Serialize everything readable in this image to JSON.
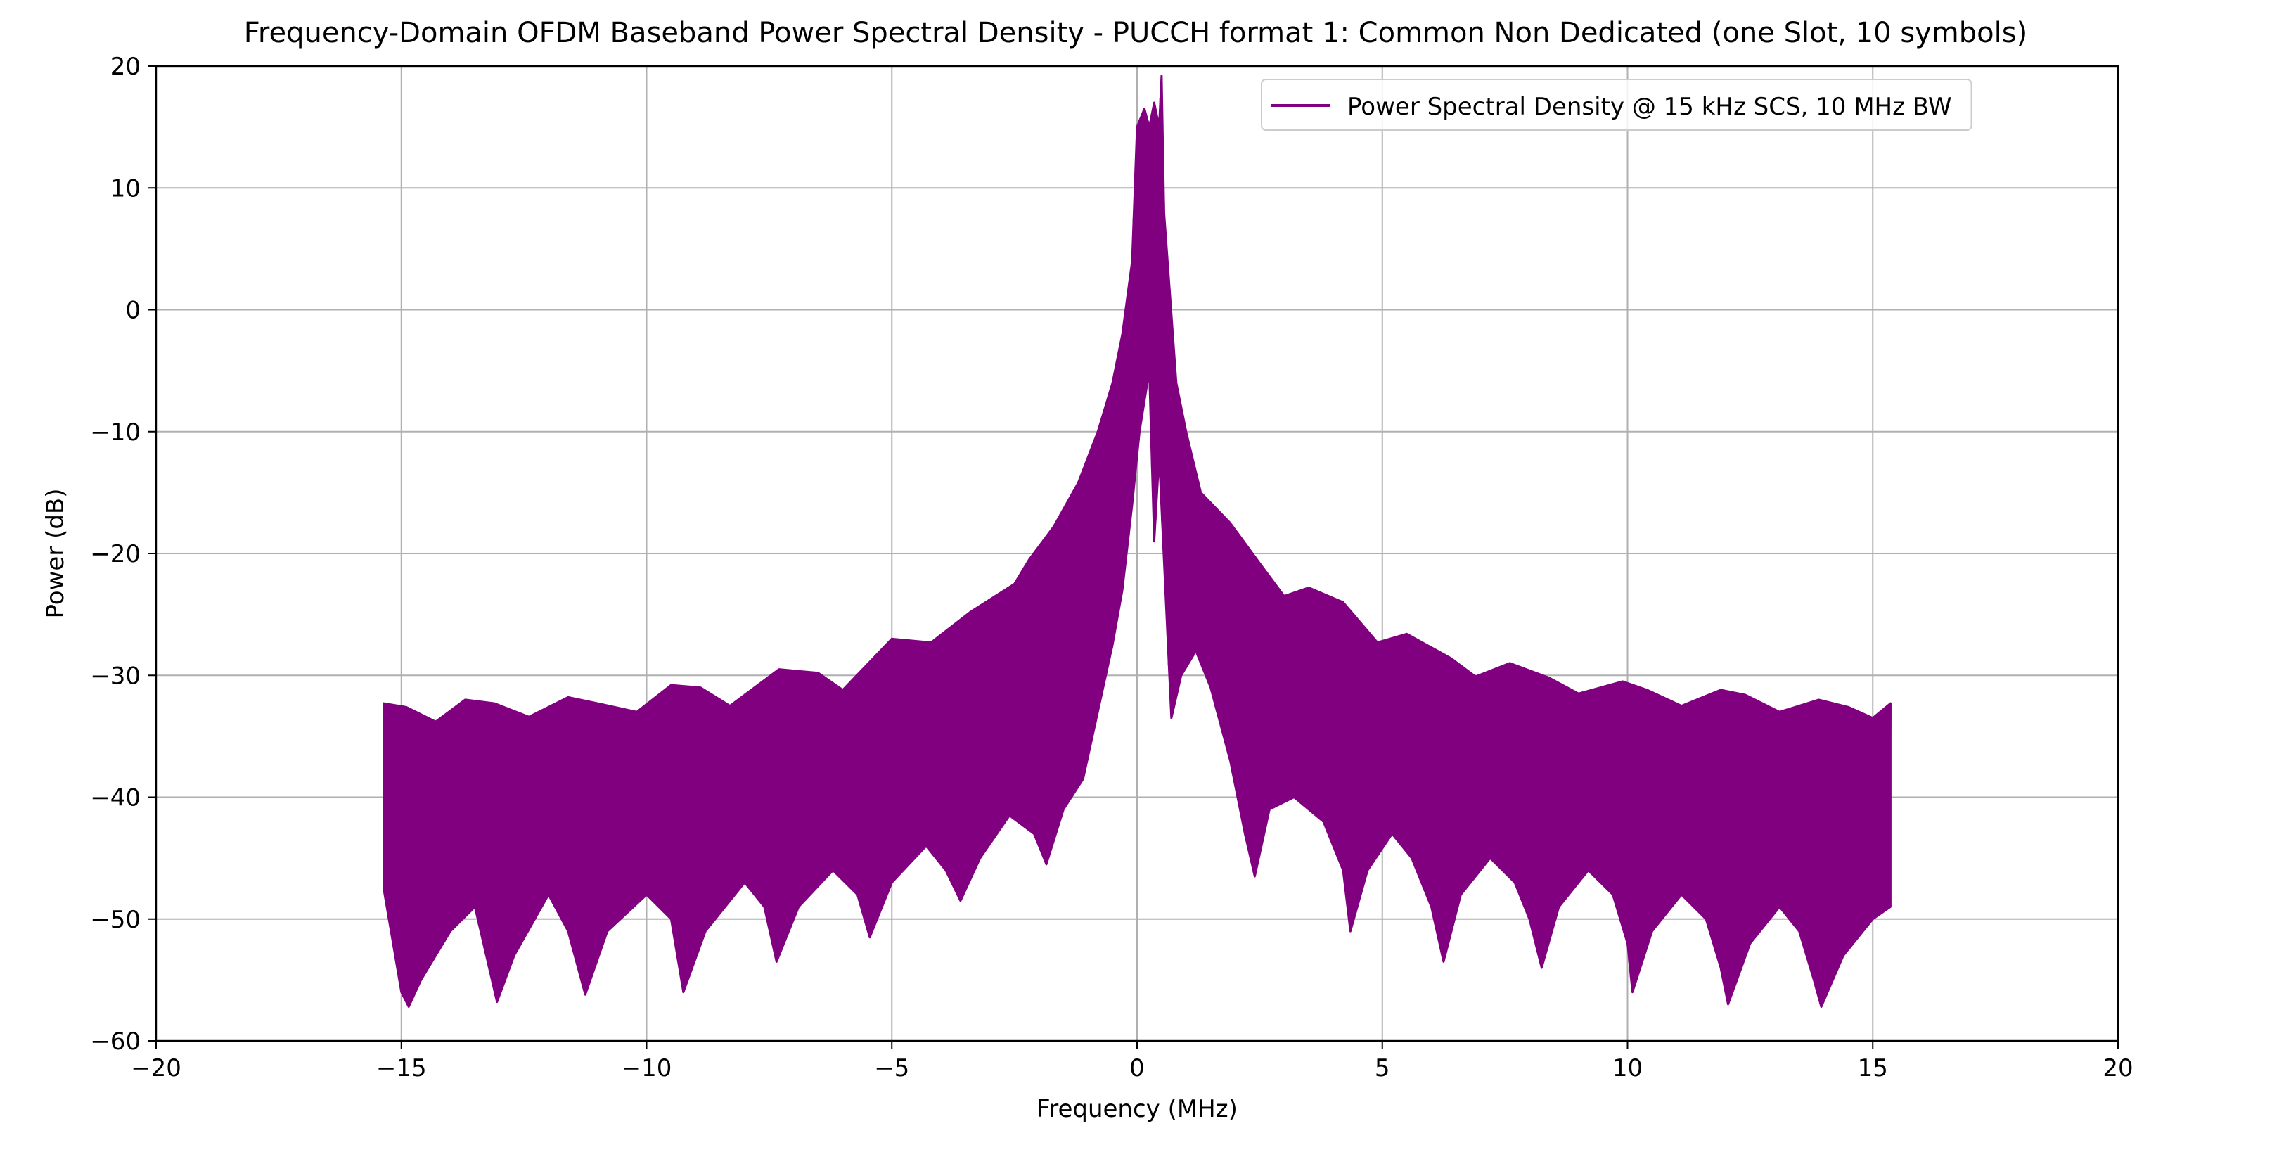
{
  "chart_data": {
    "type": "line",
    "title": "Frequency-Domain OFDM Baseband Power Spectral Density - PUCCH format 1: Common Non Dedicated (one Slot, 10 symbols)",
    "xlabel": "Frequency (MHz)",
    "ylabel": "Power (dB)",
    "xlim": [
      -20,
      20
    ],
    "ylim": [
      -60,
      20
    ],
    "xticks": [
      -20,
      -15,
      -10,
      -5,
      0,
      5,
      10,
      15,
      20
    ],
    "xtick_labels": [
      "−20",
      "−15",
      "−10",
      "−5",
      "0",
      "5",
      "10",
      "15",
      "20"
    ],
    "yticks": [
      -60,
      -50,
      -40,
      -30,
      -20,
      -10,
      0,
      10,
      20
    ],
    "ytick_labels": [
      "−60",
      "−50",
      "−40",
      "−30",
      "−20",
      "−10",
      "0",
      "10",
      "20"
    ],
    "grid": true,
    "legend_position": "top-right",
    "colors": {
      "series": "#800080",
      "grid": "#b0b0b0",
      "axes": "#000000"
    },
    "series": [
      {
        "name": "Power Spectral Density @ 15 kHz SCS, 10 MHz BW",
        "x_range": [
          -15.36,
          15.36
        ],
        "upper_envelope": [
          [
            -15.36,
            -32.3
          ],
          [
            -14.9,
            -32.6
          ],
          [
            -14.3,
            -33.8
          ],
          [
            -13.7,
            -32.0
          ],
          [
            -13.1,
            -32.3
          ],
          [
            -12.4,
            -33.4
          ],
          [
            -11.6,
            -31.8
          ],
          [
            -11.0,
            -32.3
          ],
          [
            -10.2,
            -33.0
          ],
          [
            -9.5,
            -30.8
          ],
          [
            -8.9,
            -31.0
          ],
          [
            -8.3,
            -32.5
          ],
          [
            -7.3,
            -29.5
          ],
          [
            -6.5,
            -29.8
          ],
          [
            -6.0,
            -31.2
          ],
          [
            -5.0,
            -27.0
          ],
          [
            -4.2,
            -27.3
          ],
          [
            -3.4,
            -24.8
          ],
          [
            -2.5,
            -22.5
          ],
          [
            -2.2,
            -20.5
          ],
          [
            -1.7,
            -17.8
          ],
          [
            -1.2,
            -14.2
          ],
          [
            -0.8,
            -10.0
          ],
          [
            -0.5,
            -6.0
          ],
          [
            -0.3,
            -2.0
          ],
          [
            -0.1,
            4.0
          ],
          [
            0.0,
            15.0
          ],
          [
            0.15,
            16.5
          ],
          [
            0.25,
            15.0
          ],
          [
            0.35,
            17.0
          ],
          [
            0.45,
            15.0
          ],
          [
            0.5,
            19.2
          ],
          [
            0.55,
            8.0
          ],
          [
            0.8,
            -6.0
          ],
          [
            1.0,
            -10.0
          ],
          [
            1.3,
            -15.0
          ],
          [
            1.9,
            -17.5
          ],
          [
            2.5,
            -20.8
          ],
          [
            3.0,
            -23.5
          ],
          [
            3.5,
            -22.8
          ],
          [
            4.2,
            -24.0
          ],
          [
            4.9,
            -27.3
          ],
          [
            5.5,
            -26.6
          ],
          [
            6.4,
            -28.6
          ],
          [
            6.9,
            -30.1
          ],
          [
            7.6,
            -29.0
          ],
          [
            8.4,
            -30.2
          ],
          [
            9.0,
            -31.5
          ],
          [
            9.9,
            -30.5
          ],
          [
            10.4,
            -31.2
          ],
          [
            11.1,
            -32.5
          ],
          [
            11.9,
            -31.2
          ],
          [
            12.4,
            -31.6
          ],
          [
            13.1,
            -33.0
          ],
          [
            13.9,
            -32.0
          ],
          [
            14.5,
            -32.6
          ],
          [
            15.0,
            -33.5
          ],
          [
            15.36,
            -32.3
          ]
        ],
        "lower_envelope": [
          [
            -15.36,
            -47.5
          ],
          [
            -15.0,
            -56.0
          ],
          [
            -14.85,
            -57.2
          ],
          [
            -14.6,
            -55.0
          ],
          [
            -14.0,
            -51.0
          ],
          [
            -13.5,
            -49.0
          ],
          [
            -13.05,
            -56.8
          ],
          [
            -12.7,
            -53.0
          ],
          [
            -12.0,
            -48.0
          ],
          [
            -11.6,
            -51.0
          ],
          [
            -11.25,
            -56.2
          ],
          [
            -10.8,
            -51.0
          ],
          [
            -10.0,
            -48.0
          ],
          [
            -9.5,
            -50.0
          ],
          [
            -9.25,
            -56.0
          ],
          [
            -8.8,
            -51.0
          ],
          [
            -8.0,
            -47.0
          ],
          [
            -7.6,
            -49.0
          ],
          [
            -7.35,
            -53.5
          ],
          [
            -6.9,
            -49.0
          ],
          [
            -6.2,
            -46.0
          ],
          [
            -5.7,
            -48.0
          ],
          [
            -5.45,
            -51.5
          ],
          [
            -5.0,
            -47.0
          ],
          [
            -4.3,
            -44.0
          ],
          [
            -3.9,
            -46.0
          ],
          [
            -3.6,
            -48.5
          ],
          [
            -3.2,
            -45.0
          ],
          [
            -2.6,
            -41.5
          ],
          [
            -2.1,
            -43.0
          ],
          [
            -1.85,
            -45.5
          ],
          [
            -1.5,
            -41.0
          ],
          [
            -1.1,
            -38.5
          ],
          [
            -0.8,
            -33.0
          ],
          [
            -0.5,
            -27.5
          ],
          [
            -0.3,
            -23.0
          ],
          [
            -0.1,
            -16.0
          ],
          [
            0.05,
            -10.0
          ],
          [
            0.25,
            -5.0
          ],
          [
            0.35,
            -19.0
          ],
          [
            0.45,
            -12.0
          ],
          [
            0.6,
            -25.0
          ],
          [
            0.7,
            -33.5
          ],
          [
            0.9,
            -30.0
          ],
          [
            1.2,
            -28.0
          ],
          [
            1.5,
            -31.0
          ],
          [
            1.9,
            -37.0
          ],
          [
            2.2,
            -43.0
          ],
          [
            2.4,
            -46.5
          ],
          [
            2.7,
            -41.0
          ],
          [
            3.2,
            -40.0
          ],
          [
            3.8,
            -42.0
          ],
          [
            4.2,
            -46.0
          ],
          [
            4.35,
            -51.0
          ],
          [
            4.7,
            -46.0
          ],
          [
            5.2,
            -43.0
          ],
          [
            5.6,
            -45.0
          ],
          [
            6.0,
            -49.0
          ],
          [
            6.25,
            -53.5
          ],
          [
            6.6,
            -48.0
          ],
          [
            7.2,
            -45.0
          ],
          [
            7.7,
            -47.0
          ],
          [
            8.0,
            -50.0
          ],
          [
            8.25,
            -54.0
          ],
          [
            8.6,
            -49.0
          ],
          [
            9.2,
            -46.0
          ],
          [
            9.7,
            -48.0
          ],
          [
            10.0,
            -52.0
          ],
          [
            10.1,
            -56.0
          ],
          [
            10.5,
            -51.0
          ],
          [
            11.1,
            -48.0
          ],
          [
            11.6,
            -50.0
          ],
          [
            11.9,
            -54.0
          ],
          [
            12.05,
            -57.0
          ],
          [
            12.5,
            -52.0
          ],
          [
            13.1,
            -49.0
          ],
          [
            13.5,
            -51.0
          ],
          [
            13.8,
            -55.0
          ],
          [
            13.95,
            -57.2
          ],
          [
            14.4,
            -53.0
          ],
          [
            15.0,
            -50.0
          ],
          [
            15.36,
            -49.0
          ]
        ]
      }
    ]
  }
}
